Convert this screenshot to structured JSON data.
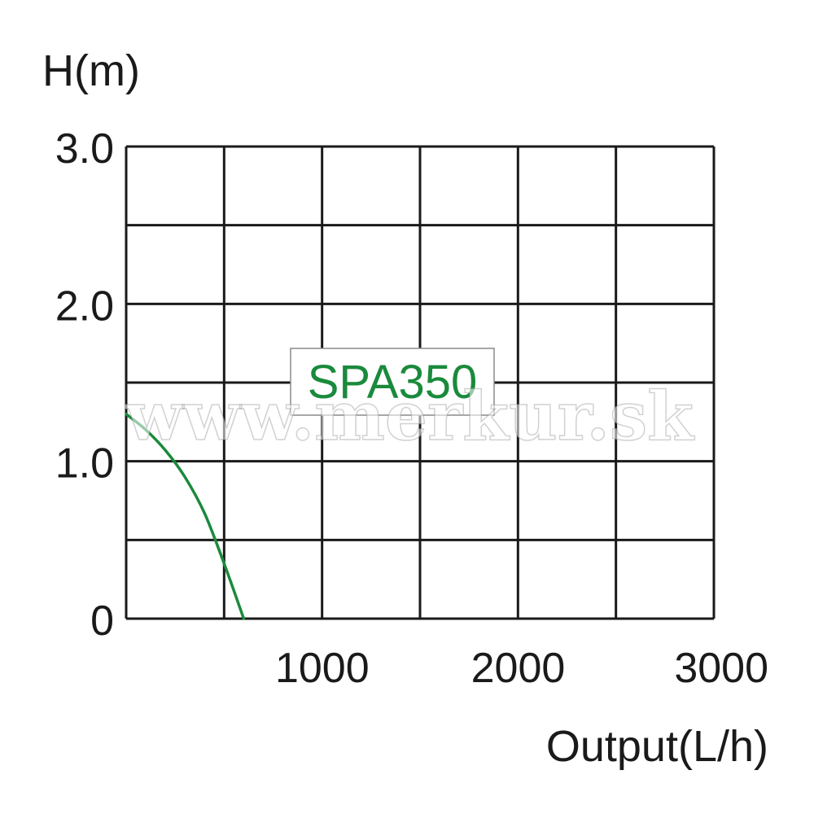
{
  "chart_data": {
    "type": "line",
    "ylabel": "H(m)",
    "xlabel": "Output(L/h)",
    "xlim": [
      0,
      3000
    ],
    "ylim": [
      0,
      3.0
    ],
    "xticks": [
      1000,
      2000,
      3000
    ],
    "xtick_labels": [
      "1000",
      "2000",
      "3000"
    ],
    "yticks": [
      0,
      1.0,
      2.0,
      3.0
    ],
    "ytick_labels": [
      "0",
      "1.0",
      "2.0",
      "3.0"
    ],
    "grid": true,
    "grid_x_step": 500,
    "grid_y_step": 0.5,
    "annotation": "SPA350",
    "watermark": "www.merkur.sk",
    "series": [
      {
        "color": "#1a8a3c",
        "x": [
          0,
          100,
          200,
          300,
          400,
          500,
          600
        ],
        "y": [
          1.3,
          1.2,
          1.07,
          0.9,
          0.67,
          0.35,
          0.0
        ]
      }
    ]
  },
  "colors": {
    "grid": "#1a1a1a",
    "label_text": "#1a8a3c"
  }
}
